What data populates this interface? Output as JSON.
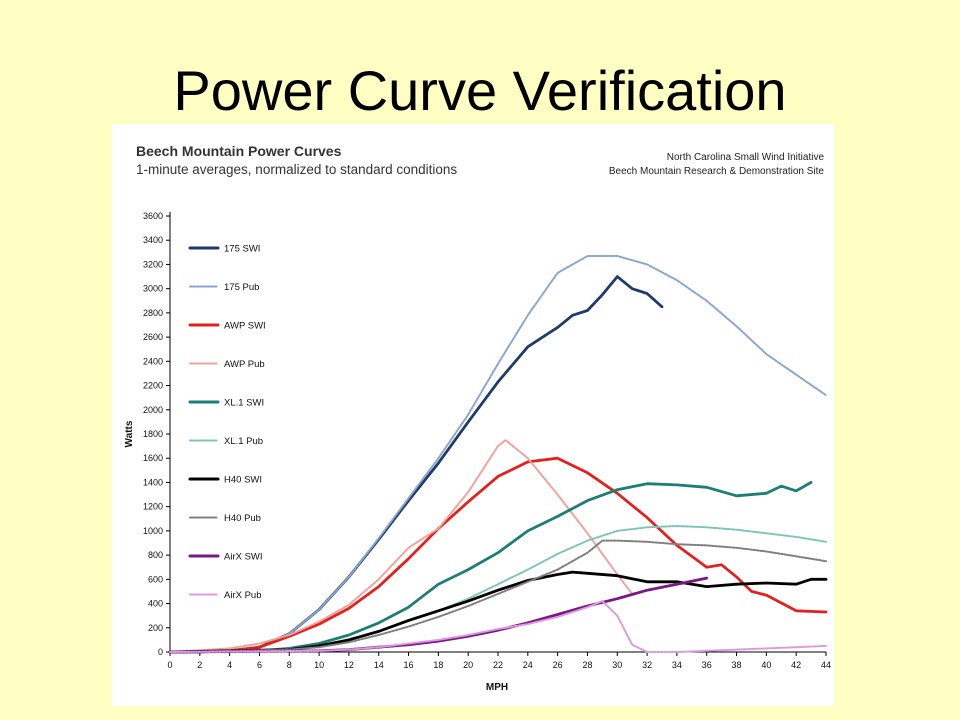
{
  "slide": {
    "title": "Power Curve Verification"
  },
  "chart_data": {
    "type": "line",
    "title": "Beech Mountain Power Curves",
    "subtitle": "1-minute averages, normalized to standard conditions",
    "source_line1": "North Carolina Small Wind Initiative",
    "source_line2": "Beech Mountain Research & Demonstration Site",
    "xlabel": "MPH",
    "ylabel": "Watts",
    "xlim": [
      0,
      44
    ],
    "ylim": [
      0,
      3600
    ],
    "xticks": [
      0,
      2,
      4,
      6,
      8,
      10,
      12,
      14,
      16,
      18,
      20,
      22,
      24,
      26,
      28,
      30,
      32,
      34,
      36,
      38,
      40,
      42,
      44
    ],
    "yticks": [
      0,
      200,
      400,
      600,
      800,
      1000,
      1200,
      1400,
      1600,
      1800,
      2000,
      2200,
      2400,
      2600,
      2800,
      3000,
      3200,
      3400,
      3600
    ],
    "grid": false,
    "legend_position": "top-left",
    "series": [
      {
        "name": "175 SWI",
        "color": "#1f3a6b",
        "style": "solid",
        "points": [
          [
            0,
            0
          ],
          [
            2,
            0
          ],
          [
            4,
            10
          ],
          [
            6,
            40
          ],
          [
            8,
            150
          ],
          [
            10,
            350
          ],
          [
            12,
            620
          ],
          [
            14,
            930
          ],
          [
            16,
            1250
          ],
          [
            18,
            1560
          ],
          [
            20,
            1900
          ],
          [
            22,
            2230
          ],
          [
            24,
            2520
          ],
          [
            25,
            2600
          ],
          [
            26,
            2680
          ],
          [
            27,
            2780
          ],
          [
            28,
            2820
          ],
          [
            29,
            2950
          ],
          [
            30,
            3100
          ],
          [
            31,
            3000
          ],
          [
            32,
            2960
          ],
          [
            33,
            2850
          ]
        ]
      },
      {
        "name": "175 Pub",
        "color": "#8aa6cf",
        "style": "dotted",
        "points": [
          [
            0,
            0
          ],
          [
            4,
            10
          ],
          [
            6,
            40
          ],
          [
            8,
            150
          ],
          [
            10,
            350
          ],
          [
            12,
            620
          ],
          [
            14,
            940
          ],
          [
            16,
            1270
          ],
          [
            18,
            1600
          ],
          [
            20,
            1960
          ],
          [
            22,
            2380
          ],
          [
            24,
            2780
          ],
          [
            26,
            3130
          ],
          [
            28,
            3270
          ],
          [
            30,
            3270
          ],
          [
            32,
            3200
          ],
          [
            34,
            3070
          ],
          [
            36,
            2900
          ],
          [
            38,
            2690
          ],
          [
            40,
            2460
          ],
          [
            42,
            2290
          ],
          [
            44,
            2120
          ]
        ]
      },
      {
        "name": "AWP SWI",
        "color": "#e3201b",
        "style": "solid",
        "points": [
          [
            0,
            0
          ],
          [
            4,
            10
          ],
          [
            6,
            40
          ],
          [
            8,
            130
          ],
          [
            10,
            230
          ],
          [
            12,
            360
          ],
          [
            14,
            540
          ],
          [
            16,
            770
          ],
          [
            18,
            1020
          ],
          [
            20,
            1240
          ],
          [
            22,
            1450
          ],
          [
            24,
            1570
          ],
          [
            26,
            1600
          ],
          [
            28,
            1480
          ],
          [
            30,
            1310
          ],
          [
            32,
            1110
          ],
          [
            34,
            880
          ],
          [
            35,
            790
          ],
          [
            36,
            700
          ],
          [
            37,
            720
          ],
          [
            38,
            620
          ],
          [
            39,
            500
          ],
          [
            40,
            470
          ],
          [
            42,
            340
          ],
          [
            44,
            330
          ]
        ]
      },
      {
        "name": "AWP Pub",
        "color": "#f4a09a",
        "style": "dotted",
        "points": [
          [
            0,
            0
          ],
          [
            4,
            30
          ],
          [
            6,
            70
          ],
          [
            8,
            140
          ],
          [
            10,
            250
          ],
          [
            12,
            390
          ],
          [
            14,
            600
          ],
          [
            16,
            860
          ],
          [
            18,
            1020
          ],
          [
            20,
            1320
          ],
          [
            22,
            1700
          ],
          [
            22.5,
            1750
          ],
          [
            24,
            1600
          ],
          [
            26,
            1300
          ],
          [
            28,
            980
          ],
          [
            30,
            640
          ],
          [
            31,
            480
          ]
        ]
      },
      {
        "name": "XL.1 SWI",
        "color": "#1c7e74",
        "style": "solid",
        "points": [
          [
            0,
            0
          ],
          [
            6,
            10
          ],
          [
            8,
            30
          ],
          [
            10,
            70
          ],
          [
            12,
            140
          ],
          [
            14,
            240
          ],
          [
            16,
            370
          ],
          [
            18,
            560
          ],
          [
            20,
            680
          ],
          [
            22,
            820
          ],
          [
            24,
            1000
          ],
          [
            26,
            1120
          ],
          [
            28,
            1250
          ],
          [
            30,
            1340
          ],
          [
            32,
            1390
          ],
          [
            34,
            1380
          ],
          [
            36,
            1360
          ],
          [
            38,
            1290
          ],
          [
            40,
            1310
          ],
          [
            41,
            1370
          ],
          [
            42,
            1330
          ],
          [
            43,
            1400
          ]
        ]
      },
      {
        "name": "XL.1 Pub",
        "color": "#7fc4bb",
        "style": "dotted",
        "points": [
          [
            0,
            0
          ],
          [
            6,
            10
          ],
          [
            8,
            20
          ],
          [
            10,
            50
          ],
          [
            12,
            100
          ],
          [
            14,
            170
          ],
          [
            16,
            260
          ],
          [
            18,
            340
          ],
          [
            20,
            440
          ],
          [
            22,
            560
          ],
          [
            24,
            680
          ],
          [
            26,
            810
          ],
          [
            28,
            920
          ],
          [
            30,
            1000
          ],
          [
            32,
            1030
          ],
          [
            34,
            1040
          ],
          [
            36,
            1030
          ],
          [
            38,
            1010
          ],
          [
            40,
            980
          ],
          [
            42,
            950
          ],
          [
            44,
            910
          ]
        ]
      },
      {
        "name": "H40 SWI",
        "color": "#000000",
        "style": "solid",
        "points": [
          [
            0,
            0
          ],
          [
            8,
            20
          ],
          [
            10,
            50
          ],
          [
            12,
            100
          ],
          [
            14,
            170
          ],
          [
            16,
            260
          ],
          [
            18,
            340
          ],
          [
            20,
            420
          ],
          [
            22,
            510
          ],
          [
            24,
            590
          ],
          [
            26,
            640
          ],
          [
            27,
            660
          ],
          [
            28,
            650
          ],
          [
            30,
            630
          ],
          [
            32,
            580
          ],
          [
            34,
            580
          ],
          [
            36,
            540
          ],
          [
            38,
            560
          ],
          [
            40,
            570
          ],
          [
            42,
            560
          ],
          [
            43,
            600
          ],
          [
            44,
            600
          ]
        ]
      },
      {
        "name": "H40 Pub",
        "color": "#7f7f7f",
        "style": "dotted",
        "points": [
          [
            0,
            0
          ],
          [
            8,
            20
          ],
          [
            10,
            40
          ],
          [
            12,
            80
          ],
          [
            14,
            140
          ],
          [
            16,
            210
          ],
          [
            18,
            290
          ],
          [
            20,
            380
          ],
          [
            22,
            480
          ],
          [
            24,
            580
          ],
          [
            26,
            680
          ],
          [
            28,
            820
          ],
          [
            29,
            920
          ],
          [
            30,
            920
          ],
          [
            32,
            910
          ],
          [
            34,
            890
          ],
          [
            36,
            880
          ],
          [
            38,
            860
          ],
          [
            40,
            830
          ],
          [
            42,
            790
          ],
          [
            44,
            750
          ]
        ]
      },
      {
        "name": "AirX SWI",
        "color": "#7a1785",
        "style": "solid",
        "points": [
          [
            0,
            0
          ],
          [
            10,
            10
          ],
          [
            12,
            20
          ],
          [
            14,
            40
          ],
          [
            16,
            60
          ],
          [
            18,
            90
          ],
          [
            20,
            130
          ],
          [
            22,
            180
          ],
          [
            24,
            240
          ],
          [
            26,
            310
          ],
          [
            28,
            380
          ],
          [
            30,
            440
          ],
          [
            32,
            510
          ],
          [
            34,
            560
          ],
          [
            36,
            610
          ]
        ]
      },
      {
        "name": "AirX Pub",
        "color": "#dd99e0",
        "style": "dotted",
        "points": [
          [
            0,
            0
          ],
          [
            10,
            10
          ],
          [
            12,
            20
          ],
          [
            14,
            40
          ],
          [
            16,
            70
          ],
          [
            18,
            100
          ],
          [
            20,
            140
          ],
          [
            22,
            190
          ],
          [
            24,
            230
          ],
          [
            26,
            290
          ],
          [
            28,
            370
          ],
          [
            29,
            420
          ],
          [
            30,
            300
          ],
          [
            31,
            60
          ],
          [
            32,
            0
          ],
          [
            34,
            0
          ],
          [
            36,
            10
          ],
          [
            38,
            20
          ],
          [
            40,
            30
          ],
          [
            42,
            40
          ],
          [
            44,
            50
          ]
        ]
      }
    ]
  }
}
